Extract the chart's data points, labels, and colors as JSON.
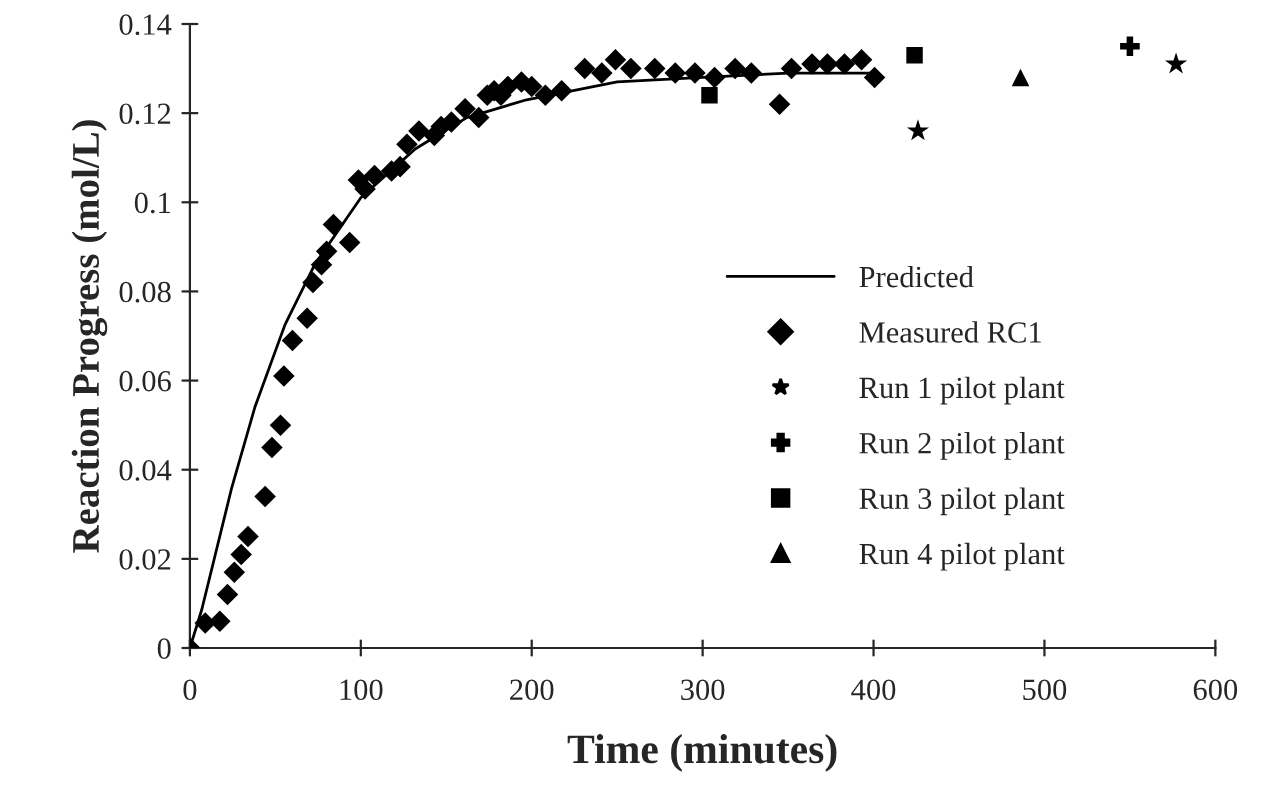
{
  "chart_data": {
    "type": "scatter",
    "xlabel": "Time (minutes)",
    "ylabel": "Reaction Progress (mol/L)",
    "xlim": [
      0,
      600
    ],
    "xticks": [
      0,
      100,
      200,
      300,
      400,
      500,
      600
    ],
    "ylim": [
      0,
      0.14
    ],
    "yticks": [
      0,
      0.02,
      0.04,
      0.06,
      0.08,
      0.1,
      0.12,
      0.14
    ],
    "grid": false,
    "legend": "lower right",
    "series": [
      {
        "name": "Predicted",
        "type": "line",
        "color": "#000000",
        "marker": "none",
        "line_style": "solid",
        "x": [
          0,
          7,
          24.5,
          38,
          55.6,
          73,
          100,
          132,
          162,
          197,
          250,
          300,
          350,
          400
        ],
        "values": [
          0,
          0.0087,
          0.036,
          0.054,
          0.0725,
          0.086,
          0.101,
          0.112,
          0.119,
          0.123,
          0.127,
          0.128,
          0.129,
          0.129
        ]
      },
      {
        "name": "Measured RC1",
        "color": "#000000",
        "marker": "diamond",
        "x": [
          0,
          9,
          17.5,
          22,
          26,
          30,
          34,
          44,
          48,
          53,
          55,
          60,
          68.6,
          72,
          77,
          80,
          84,
          93.5,
          98.6,
          102.5,
          108,
          118,
          123,
          127,
          134,
          143,
          147,
          153,
          161,
          169,
          174,
          178,
          182,
          186,
          192,
          194,
          200,
          208,
          217.5,
          231,
          241,
          249,
          258,
          272,
          284,
          295.5,
          307,
          319,
          328.5,
          345,
          352,
          364,
          373,
          383,
          393,
          400.6
        ],
        "values": [
          0,
          0.0056,
          0.006,
          0.012,
          0.017,
          0.021,
          0.025,
          0.034,
          0.045,
          0.05,
          0.061,
          0.069,
          0.074,
          0.082,
          0.086,
          0.089,
          0.095,
          0.091,
          0.105,
          0.103,
          0.106,
          0.107,
          0.108,
          0.113,
          0.116,
          0.115,
          0.117,
          0.118,
          0.121,
          0.119,
          0.124,
          0.125,
          0.124,
          0.126,
          null,
          0.127,
          0.126,
          0.124,
          0.125,
          0.13,
          0.129,
          0.132,
          0.13,
          0.13,
          0.129,
          0.129,
          0.128,
          0.13,
          0.129,
          0.122,
          0.13,
          0.131,
          0.131,
          0.131,
          0.132,
          0.128
        ]
      },
      {
        "name": "Run 1 pilot plant",
        "color": "#000000",
        "marker": "star",
        "x": [
          426,
          577
        ],
        "values": [
          0.116,
          0.131
        ]
      },
      {
        "name": "Run 2 pilot plant",
        "color": "#000000",
        "marker": "cross",
        "x": [
          550
        ],
        "values": [
          0.135
        ]
      },
      {
        "name": "Run 3 pilot plant",
        "color": "#000000",
        "marker": "square",
        "x": [
          304,
          424
        ],
        "values": [
          0.124,
          0.133
        ]
      },
      {
        "name": "Run 4 pilot plant",
        "color": "#000000",
        "marker": "triangle",
        "x": [
          486
        ],
        "values": [
          0.128
        ]
      }
    ]
  }
}
